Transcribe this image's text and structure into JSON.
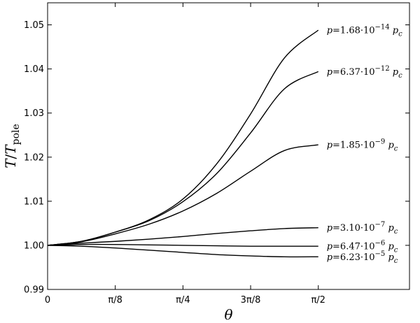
{
  "chart_data": {
    "type": "line",
    "xlabel": "θ",
    "ylabel_main": "T",
    "ylabel_denominator": "T",
    "ylabel_subscript": "pole",
    "x_tick_values": [
      0,
      0.3927,
      0.7854,
      1.1781,
      1.5708
    ],
    "x_tick_labels": [
      "0",
      "π/8",
      "π/4",
      "3π/8",
      "π/2"
    ],
    "y_tick_values": [
      0.99,
      1.0,
      1.01,
      1.02,
      1.03,
      1.04,
      1.05
    ],
    "y_tick_labels": [
      "0.99",
      "1.00",
      "1.01",
      "1.02",
      "1.03",
      "1.04",
      "1.05"
    ],
    "xlim": [
      0,
      2.1
    ],
    "ylim": [
      0.99,
      1.055
    ],
    "x": [
      0,
      0.19635,
      0.3927,
      0.58905,
      0.7854,
      0.98175,
      1.1781,
      1.37445,
      1.5708
    ],
    "series": [
      {
        "name": "p=1.68·10−14 pc",
        "label_parts": {
          "lhs": "p",
          "mantissa": "1.68",
          "exponent": "−14",
          "unit_sub": "c"
        },
        "y_end": 1.0488,
        "values": [
          1.0,
          1.0009,
          1.003,
          1.0058,
          1.0105,
          1.0185,
          1.0298,
          1.0425,
          1.0488
        ]
      },
      {
        "name": "p=6.37·10−12 pc",
        "label_parts": {
          "lhs": "p",
          "mantissa": "6.37",
          "exponent": "−12",
          "unit_sub": "c"
        },
        "y_end": 1.0394,
        "values": [
          1.0,
          1.0009,
          1.003,
          1.0056,
          1.0099,
          1.0163,
          1.0255,
          1.0355,
          1.0394
        ]
      },
      {
        "name": "p=1.85·10−9 pc",
        "label_parts": {
          "lhs": "p",
          "mantissa": "1.85",
          "exponent": "−9",
          "unit_sub": "c"
        },
        "y_end": 1.0228,
        "values": [
          1.0,
          1.0008,
          1.0026,
          1.0048,
          1.0078,
          1.0118,
          1.0168,
          1.0215,
          1.0228
        ]
      },
      {
        "name": "p=3.10·10−7 pc",
        "label_parts": {
          "lhs": "p",
          "mantissa": "3.10",
          "exponent": "−7",
          "unit_sub": "c"
        },
        "y_end": 1.004,
        "values": [
          1.0,
          1.0005,
          1.0009,
          1.0014,
          1.002,
          1.0027,
          1.0033,
          1.0038,
          1.004
        ]
      },
      {
        "name": "p=6.47·10−6 pc",
        "label_parts": {
          "lhs": "p",
          "mantissa": "6.47",
          "exponent": "−6",
          "unit_sub": "c"
        },
        "y_end": 0.9998,
        "values": [
          1.0,
          1.0002,
          1.0002,
          1.0001,
          1.0,
          0.9999,
          0.9998,
          0.9998,
          0.9998
        ]
      },
      {
        "name": "p=6.23·10−5 pc",
        "label_parts": {
          "lhs": "p",
          "mantissa": "6.23",
          "exponent": "−5",
          "unit_sub": "c"
        },
        "y_end": 0.9974,
        "values": [
          1.0,
          0.9998,
          0.9994,
          0.9989,
          0.9984,
          0.9979,
          0.9976,
          0.9974,
          0.9974
        ]
      }
    ],
    "line_color": "#000000",
    "legend": "none",
    "grid": false
  }
}
